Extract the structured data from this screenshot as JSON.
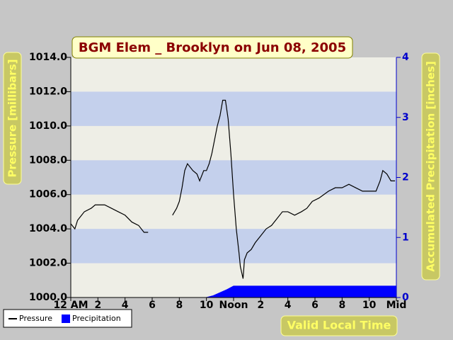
{
  "chart_data": {
    "type": "line",
    "title": "BGM Elem _ Brooklyn on Jun 08, 2005",
    "y_label": "Pressure [millibars]",
    "y2_label": "Accumulated Precipitation [inches]",
    "x_label": "Valid Local Time",
    "xlim": [
      0,
      24
    ],
    "xticks": [
      {
        "value": 0,
        "label": "12 AM"
      },
      2,
      4,
      6,
      8,
      10,
      {
        "value": 12,
        "label": "Noon"
      },
      {
        "value": 14,
        "label": "2"
      },
      {
        "value": 16,
        "label": "4"
      },
      {
        "value": 18,
        "label": "6"
      },
      {
        "value": 20,
        "label": "8"
      },
      {
        "value": 22,
        "label": "10"
      },
      {
        "value": 24,
        "label": "Mid"
      }
    ],
    "ylim": [
      1000,
      1014
    ],
    "yticks": [
      {
        "value": 1000,
        "label": "1000.0"
      },
      {
        "value": 1002,
        "label": "1002.0"
      },
      {
        "value": 1004,
        "label": "1004.0"
      },
      {
        "value": 1006,
        "label": "1006.0"
      },
      {
        "value": 1008,
        "label": "1008.0"
      },
      {
        "value": 1010,
        "label": "1010.0"
      },
      {
        "value": 1012,
        "label": "1012.0"
      },
      {
        "value": 1014,
        "label": "1014.0"
      }
    ],
    "y2lim": [
      0,
      4
    ],
    "y2ticks": [
      0,
      1,
      2,
      3,
      4
    ],
    "series": [
      {
        "name": "Pressure",
        "color": "#000000",
        "x": [
          0,
          0.3,
          0.5,
          0.8,
          1,
          1.5,
          1.8,
          2.5,
          3,
          3.5,
          4,
          4.5,
          5,
          5.4,
          5.7,
          6.6,
          7.5,
          7.8,
          8,
          8.2,
          8.4,
          8.6,
          9,
          9.3,
          9.5,
          9.8,
          10,
          10.2,
          10.4,
          10.6,
          10.8,
          11,
          11.2,
          11.4,
          11.6,
          11.8,
          12,
          12.2,
          12.4,
          12.5,
          12.7,
          12.8,
          13,
          13.3,
          13.6,
          14,
          14.4,
          14.8,
          15.2,
          15.6,
          16,
          16.5,
          17,
          17.4,
          17.8,
          18.3,
          19,
          19.5,
          20,
          20.5,
          21,
          21.5,
          22,
          22.5,
          22.8,
          23,
          23.3,
          23.6,
          23.9
        ],
        "values": [
          1004.3,
          1004.0,
          1004.5,
          1004.8,
          1005.0,
          1005.2,
          1005.4,
          1005.4,
          1005.2,
          1005.0,
          1004.8,
          1004.4,
          1004.2,
          1003.8,
          1003.8,
          null,
          1004.8,
          1005.2,
          1005.6,
          1006.4,
          1007.4,
          1007.8,
          1007.4,
          1007.2,
          1006.8,
          1007.4,
          1007.4,
          1007.8,
          1008.4,
          1009.2,
          1010.0,
          1010.6,
          1011.5,
          1011.5,
          1010.4,
          1008.4,
          1006.0,
          1004.0,
          1002.6,
          1001.8,
          1001.1,
          1002.2,
          1002.6,
          1002.8,
          1003.2,
          1003.6,
          1004.0,
          1004.2,
          1004.6,
          1005.0,
          1005.0,
          1004.8,
          1005.0,
          1005.2,
          1005.6,
          1005.8,
          1006.2,
          1006.4,
          1006.4,
          1006.6,
          1006.4,
          1006.2,
          1006.2,
          1006.2,
          1006.8,
          1007.4,
          1007.2,
          1006.8,
          1006.8
        ]
      },
      {
        "name": "Precipitation",
        "color": "#0000ff",
        "axis": "y2",
        "fill": true,
        "x": [
          0,
          10,
          10.5,
          11,
          11.5,
          12,
          24
        ],
        "values": [
          0,
          0,
          0.03,
          0.08,
          0.13,
          0.19,
          0.19
        ]
      }
    ]
  }
}
